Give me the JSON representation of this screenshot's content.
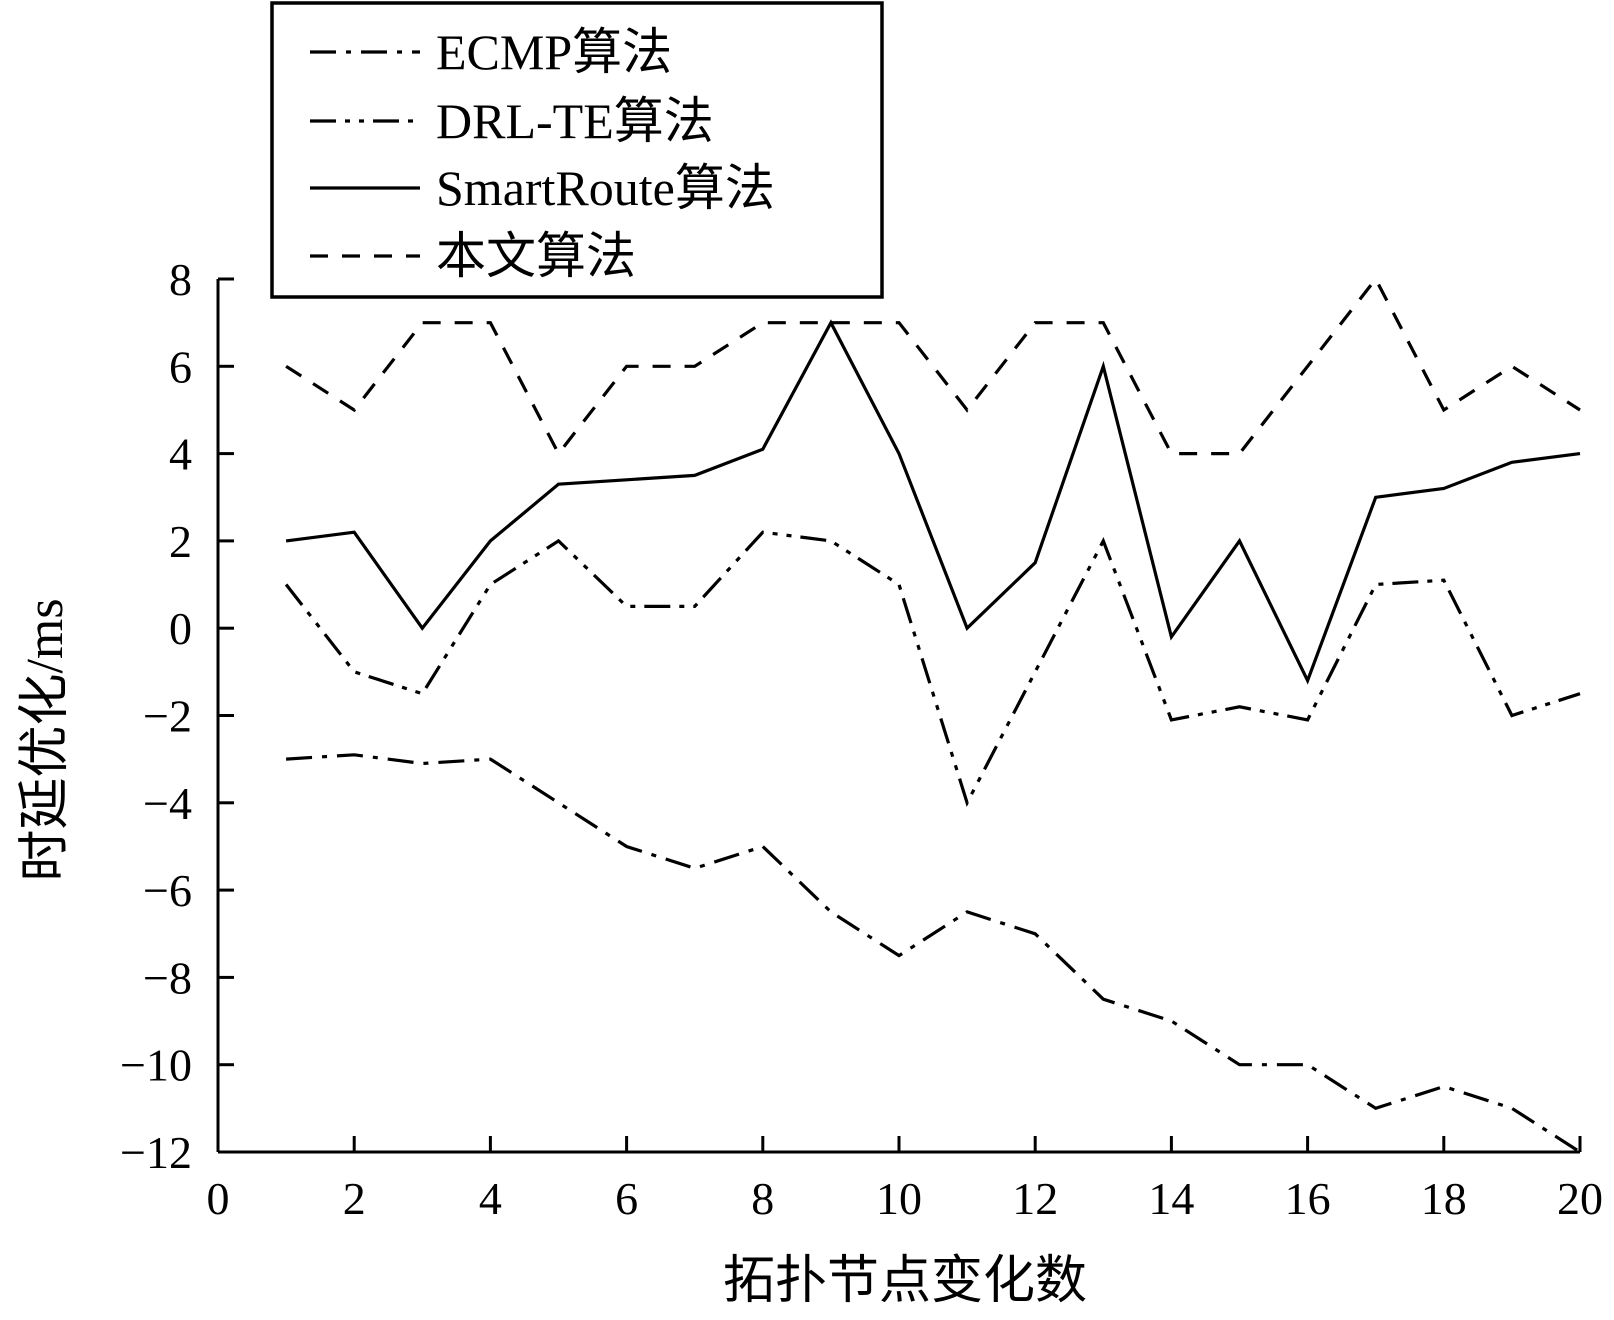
{
  "chart_data": {
    "type": "line",
    "xlabel": "拓扑节点变化数",
    "ylabel": "时延优化/ms",
    "xlim": [
      0,
      20
    ],
    "ylim": [
      -12,
      8
    ],
    "xticks": [
      0,
      2,
      4,
      6,
      8,
      10,
      12,
      14,
      16,
      18,
      20
    ],
    "yticks": [
      8,
      6,
      4,
      2,
      0,
      -2,
      -4,
      -6,
      -8,
      -10,
      -12
    ],
    "xtick_labels": [
      "0",
      "2",
      "4",
      "6",
      "8",
      "10",
      "12",
      "14",
      "16",
      "18",
      "20"
    ],
    "ytick_labels": [
      "8",
      "6",
      "4",
      "2",
      "0",
      "−2",
      "−4",
      "−6",
      "−8",
      "−10",
      "−12"
    ],
    "grid": false,
    "legend_position": "top-left",
    "x": [
      1,
      2,
      3,
      4,
      5,
      6,
      7,
      8,
      9,
      10,
      11,
      12,
      13,
      14,
      15,
      16,
      17,
      18,
      19,
      20
    ],
    "series": [
      {
        "name": "ECMP算法",
        "style": "dash-dot",
        "color": "#000000",
        "values": [
          -3,
          -2.9,
          -3.1,
          -3,
          -4,
          -5,
          -5.5,
          -5,
          -6.5,
          -7.5,
          -6.5,
          -7,
          -8.5,
          -9,
          -10,
          -10,
          -11,
          -10.5,
          -11,
          -12
        ]
      },
      {
        "name": "DRL-TE算法",
        "style": "dash-dot-dot",
        "color": "#000000",
        "values": [
          1,
          -1,
          -1.5,
          1,
          2,
          0.5,
          0.5,
          2.2,
          2,
          1,
          -4,
          -1,
          2,
          -2.1,
          -1.8,
          -2.1,
          1,
          1.1,
          -2,
          -1.5
        ]
      },
      {
        "name": "SmartRoute算法",
        "style": "solid",
        "color": "#000000",
        "values": [
          2,
          2.2,
          0,
          2,
          3.3,
          3.4,
          3.5,
          4.1,
          7,
          4,
          0,
          1.5,
          6,
          -0.2,
          2,
          -1.2,
          3,
          3.2,
          3.8,
          4
        ]
      },
      {
        "name": "本文算法",
        "style": "dashed",
        "color": "#000000",
        "values": [
          6,
          5,
          7,
          7,
          4,
          6,
          6,
          7,
          7,
          7,
          5,
          7,
          7,
          4,
          4,
          6,
          8,
          5,
          6,
          5
        ]
      }
    ]
  }
}
